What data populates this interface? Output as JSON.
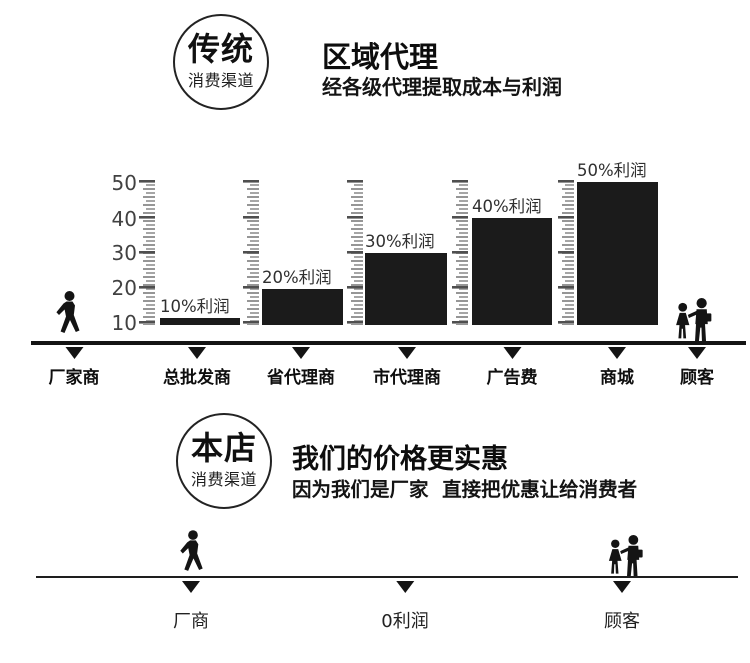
{
  "page": {
    "background": "#ffffff",
    "ink": "#1a1a1a",
    "ruler_gray": "#989898"
  },
  "traditional_section": {
    "badge": {
      "title": "传统",
      "subtitle": "消费渠道"
    },
    "heading": "区域代理",
    "subheading": "经各级代理提取成本与利润"
  },
  "chart_data": {
    "type": "bar",
    "title": "区域代理",
    "subtitle": "经各级代理提取成本与利润",
    "ylim": [
      10,
      50
    ],
    "yticks": [
      50,
      40,
      30,
      20,
      10
    ],
    "bar_base_value": 10,
    "grid": "ruler-style tick strips beside each bar",
    "categories": [
      "厂家商",
      "总批发商",
      "省代理商",
      "市代理商",
      "广告费",
      "商城",
      "顾客"
    ],
    "bars": [
      {
        "category": "总批发商",
        "label": "10%利润",
        "percent": 10
      },
      {
        "category": "省代理商",
        "label": "20%利润",
        "percent": 20
      },
      {
        "category": "市代理商",
        "label": "30%利润",
        "percent": 30
      },
      {
        "category": "广告费",
        "label": "40%利润",
        "percent": 40
      },
      {
        "category": "商城",
        "label": "50%利润",
        "percent": 50
      }
    ],
    "start_icon": "walking-person",
    "end_icon": "customer-couple"
  },
  "shop_section": {
    "badge": {
      "title": "本店",
      "subtitle": "消费渠道"
    },
    "heading": "我们的价格更实惠",
    "subheading": "因为我们是厂家  直接把优惠让给消费者",
    "stations": [
      "厂商",
      "0利润",
      "顾客"
    ]
  }
}
